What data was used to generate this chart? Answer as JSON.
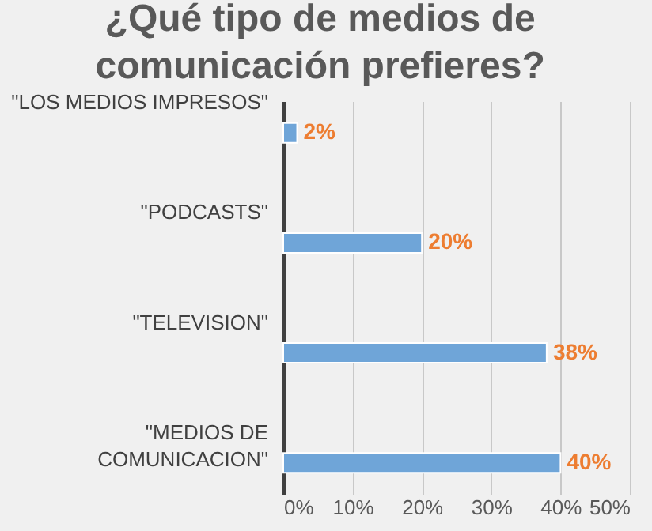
{
  "chart_data": {
    "type": "bar",
    "orientation": "horizontal",
    "title": "¿Qué tipo de medios de comunicación prefieres?",
    "categories": [
      "\"LOS MEDIOS IMPRESOS\"",
      "\"PODCASTS\"",
      "\"TELEVISION\"",
      "\"MEDIOS DE COMUNICACION\""
    ],
    "values": [
      2,
      20,
      38,
      40
    ],
    "color": "#6fa5d8",
    "value_labels": [
      "2%",
      "20%",
      "38%",
      "40%"
    ],
    "xlim": [
      0,
      50
    ],
    "xticks": [
      {
        "value": 0,
        "label": "0%"
      },
      {
        "value": 10,
        "label": "10%"
      },
      {
        "value": 20,
        "label": "20%"
      },
      {
        "value": 30,
        "label": "30%"
      },
      {
        "value": 40,
        "label": "40%"
      },
      {
        "value": 50,
        "label": "50%"
      }
    ],
    "grid": "x"
  }
}
